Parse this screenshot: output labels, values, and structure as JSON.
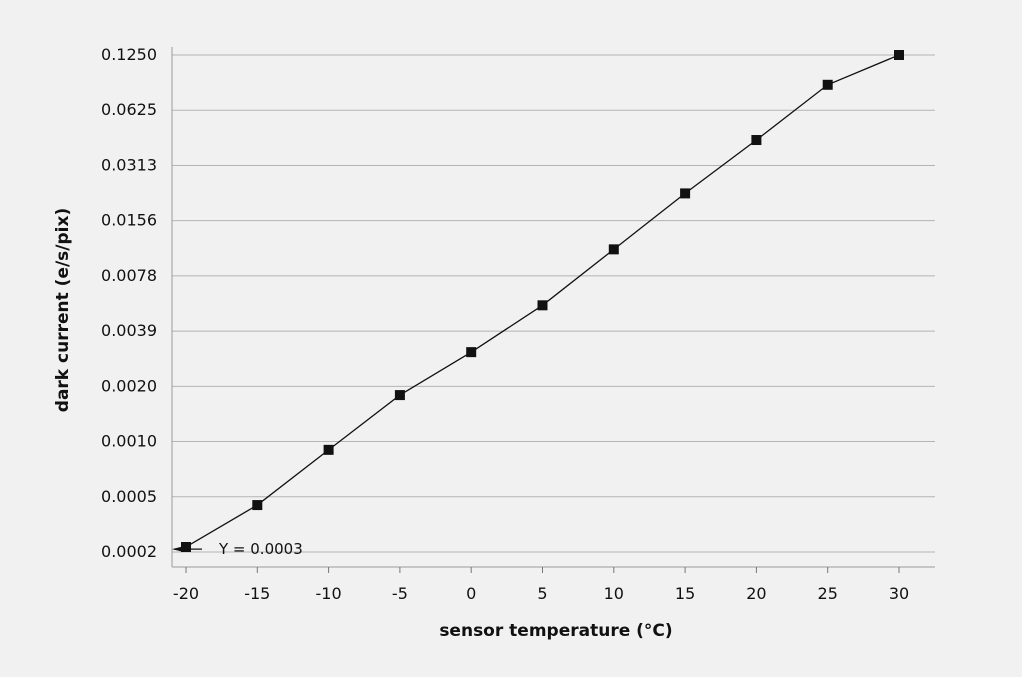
{
  "chart_data": {
    "type": "line",
    "xlabel": "sensor temperature (°C)",
    "ylabel": "dark current (e/s/pix)",
    "y_scale": "log2",
    "x_ticks": [
      -20,
      -15,
      -10,
      -5,
      0,
      5,
      10,
      15,
      20,
      25,
      30
    ],
    "x_tick_labels": [
      "-20",
      "-15",
      "-10",
      "-5",
      "0",
      "5",
      "10",
      "15",
      "20",
      "25",
      "30"
    ],
    "y_ticks": [
      0.000244140625,
      0.00048828125,
      0.0009765625,
      0.001953125,
      0.00390625,
      0.0078125,
      0.015625,
      0.03125,
      0.0625,
      0.125
    ],
    "y_tick_labels": [
      "0.0002",
      "0.0005",
      "0.0010",
      "0.0020",
      "0.0039",
      "0.0078",
      "0.0156",
      "0.0313",
      "0.0625",
      "0.1250"
    ],
    "grid": "horizontal",
    "series": [
      {
        "x": [
          -20,
          -15,
          -10,
          -5,
          0,
          5,
          10,
          15,
          20,
          25,
          30
        ],
        "y": [
          0.00026,
          0.00044,
          0.00088,
          0.00175,
          0.003,
          0.0054,
          0.0109,
          0.022,
          0.043,
          0.086,
          0.125
        ],
        "marker": "square",
        "color": "#111111"
      }
    ],
    "annotation": {
      "text": "Y = 0.0003",
      "x": -20,
      "y": 0.00025
    }
  }
}
